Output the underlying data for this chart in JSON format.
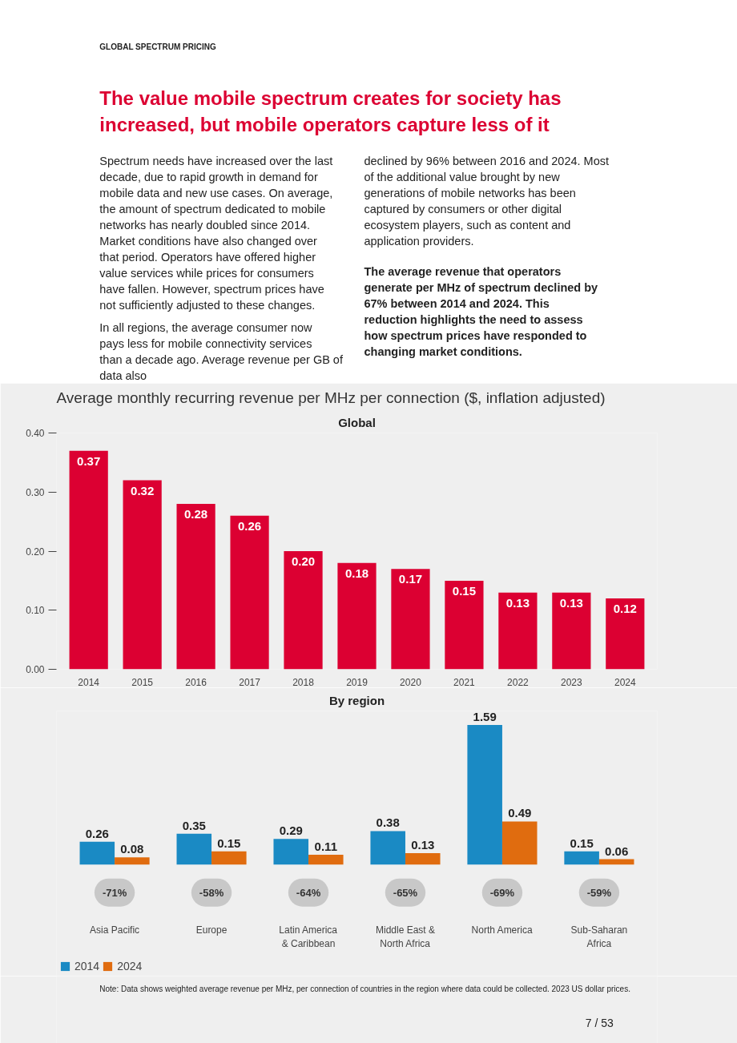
{
  "chart_data": [
    {
      "type": "bar",
      "title": "Global",
      "subtitle": "Average monthly recurring revenue per MHz per connection ($, inflation adjusted)",
      "annotations": [
        "GLOBAL SPECTRUM PRICING",
        "The value mobile spectrum creates for society has increased, but mobile operators capture less of it",
        "Spectrum needs have increased over the last decade, due to rapid growth in demand for mobile data and new use cases. On average, the amount of spectrum dedicated to mobile networks has nearly doubled since 2014. Market conditions have also changed over that period. Operators have offered higher value services while prices for consumers have fallen. However, spectrum prices have not sufficiently adjusted to these changes.",
        "In all regions, the average consumer now pays less for mobile connectivity services than a decade ago. Average revenue per GB of data also",
        "declined by 96% between 2016 and 2024. Most of the additional value brought by new generations of mobile networks has been captured by consumers or other digital ecosystem players, such as content and application providers.",
        "The average revenue that operators generate per MHz of spectrum declined by 67% between 2014 and 2024. This reduction highlights the need to assess how spectrum prices have responded to changing market conditions."
      ],
      "categories": [
        "2014",
        "2015",
        "2016",
        "2017",
        "2018",
        "2019",
        "2020",
        "2021",
        "2022",
        "2023",
        "2024"
      ],
      "values": [
        0.37,
        0.32,
        0.28,
        0.26,
        0.2,
        0.18,
        0.17,
        0.15,
        0.13,
        0.13,
        0.12
      ],
      "color": "#dc0032",
      "value_labels": [
        "0.37",
        "0.32",
        "0.28",
        "0.26",
        "0.20",
        "0.18",
        "0.17",
        "0.15",
        "0.13",
        "0.13",
        "0.12"
      ],
      "ylim": [
        0,
        0.4
      ],
      "yticks": [
        {
          "value": 0,
          "label": "0.00"
        },
        {
          "value": 0.1,
          "label": "0.10"
        },
        {
          "value": 0.2,
          "label": "0.20"
        },
        {
          "value": 0.3,
          "label": "0.30"
        },
        {
          "value": 0.4,
          "label": "0.40"
        }
      ],
      "grid": false
    },
    {
      "type": "bar",
      "title": "By region",
      "categories": [
        "Asia Pacific",
        "Europe",
        "Latin America & Caribbean",
        "Middle East & North Africa",
        "North America",
        "Sub-Saharan Africa"
      ],
      "series": [
        {
          "name": "2014",
          "color": "#1a8ac4",
          "values": [
            0.26,
            0.35,
            0.29,
            0.38,
            1.59,
            0.15
          ]
        },
        {
          "name": "2024",
          "color": "#e06c0f",
          "values": [
            0.08,
            0.15,
            0.11,
            0.13,
            0.49,
            0.06
          ]
        }
      ],
      "data_labels": true,
      "tick_labels": "x",
      "grid": false,
      "legend": "bottom left",
      "annotations": [
        "-71%",
        "-58%",
        "-64%",
        "-65%",
        "-69%",
        "-59%",
        "Note: Data shows weighted average revenue per MHz, per connection of countries in the region where data could be collected. 2023 US dollar prices.",
        "7 / 53"
      ]
    }
  ]
}
